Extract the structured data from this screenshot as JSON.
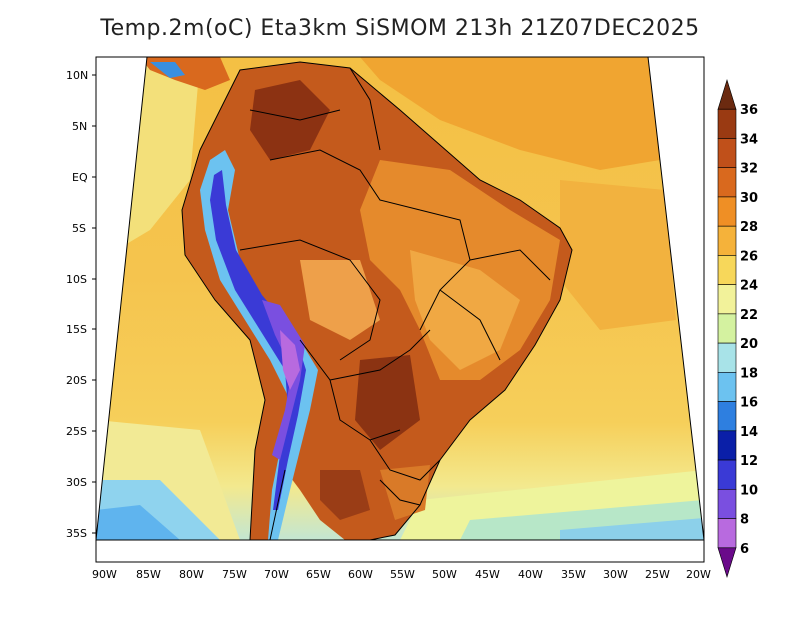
{
  "map": {
    "title": "Temp.2m(oC) Eta3km SiSMOM 213h 21Z07DEC2025",
    "lat_labels": [
      "10N",
      "5N",
      "EQ",
      "5S",
      "10S",
      "15S",
      "20S",
      "25S",
      "30S",
      "35S"
    ],
    "lon_labels": [
      "90W",
      "85W",
      "80W",
      "75W",
      "70W",
      "65W",
      "60W",
      "55W",
      "50W",
      "45W",
      "40W",
      "35W",
      "30W",
      "25W",
      "20W"
    ],
    "colorbar": {
      "labels": [
        "36",
        "34",
        "32",
        "30",
        "28",
        "26",
        "24",
        "22",
        "20",
        "18",
        "16",
        "14",
        "12",
        "10",
        "8",
        "6"
      ],
      "colors": [
        "#6b2a10",
        "#9a3a12",
        "#c0501a",
        "#d9691e",
        "#ef8f25",
        "#f5b23a",
        "#f7d75a",
        "#f2f29a",
        "#d4f2a0",
        "#a8e3e8",
        "#6cc2f0",
        "#2e7fe0",
        "#0a1fa8",
        "#3a3ad6",
        "#7a4fe0",
        "#b86adf",
        "#6a0a8a"
      ]
    }
  }
}
